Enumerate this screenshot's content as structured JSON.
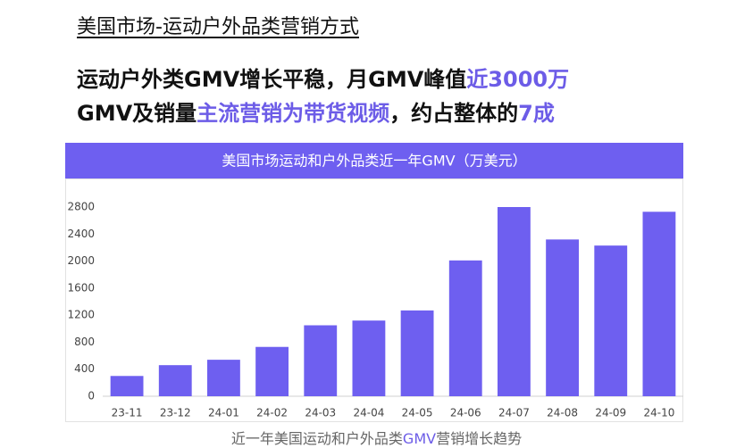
{
  "header": {
    "title": "美国市场-运动户外品类营销方式"
  },
  "headline": {
    "highlight_color": "#6c5ce7",
    "lines": [
      [
        {
          "text": "运动户外类GMV增长平稳，月GMV峰值",
          "highlight": false
        },
        {
          "text": "近3000万",
          "highlight": true
        }
      ],
      [
        {
          "text": "GMV及销量",
          "highlight": false
        },
        {
          "text": "主流营销为带货视频",
          "highlight": true
        },
        {
          "text": "，约占整体的",
          "highlight": false
        },
        {
          "text": "7成",
          "highlight": true
        }
      ]
    ]
  },
  "chart_data": {
    "type": "bar",
    "title": "美国市场运动和户外品类近一年GMV（万美元）",
    "categories": [
      "23-11",
      "23-12",
      "24-01",
      "24-02",
      "24-03",
      "24-04",
      "24-05",
      "24-06",
      "24-07",
      "24-08",
      "24-09",
      "24-10"
    ],
    "values": [
      300,
      460,
      540,
      730,
      1050,
      1120,
      1270,
      2010,
      2800,
      2320,
      2230,
      2730
    ],
    "color": "#6e5ff0",
    "ylim": [
      0,
      2800
    ],
    "yticks": [
      0,
      400,
      800,
      1200,
      1600,
      2000,
      2400,
      2800
    ],
    "grid": false
  },
  "caption": {
    "segments": [
      {
        "text": "近一年美国运动和户外品类",
        "highlight": false
      },
      {
        "text": "GMV",
        "highlight": true
      },
      {
        "text": "营销增长趋势",
        "highlight": false
      }
    ]
  }
}
